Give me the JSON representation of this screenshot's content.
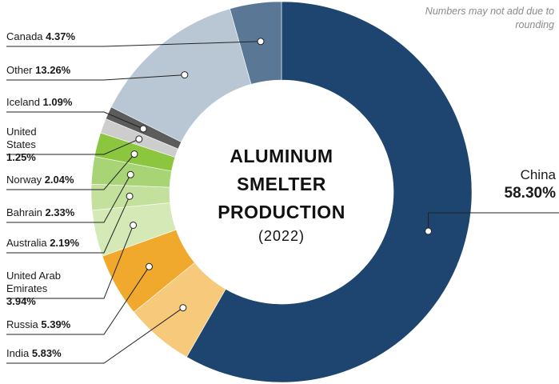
{
  "chart_data": {
    "type": "pie",
    "title": "ALUMINUM SMELTER PRODUCTION",
    "subtitle": "(2022)",
    "note": "Numbers may not add due to rounding",
    "categories": [
      "China",
      "India",
      "Russia",
      "United Arab Emirates",
      "Australia",
      "Bahrain",
      "Norway",
      "United States",
      "Iceland",
      "Other",
      "Canada"
    ],
    "values": [
      58.3,
      5.83,
      5.39,
      3.94,
      2.19,
      2.33,
      2.04,
      1.25,
      1.09,
      13.26,
      4.37
    ],
    "value_labels": [
      "58.30%",
      "5.83%",
      "5.39%",
      "3.94%",
      "2.19%",
      "2.33%",
      "2.04%",
      "1.25%",
      "1.09%",
      "13.26%",
      "4.37%"
    ],
    "colors": [
      "#1e4570",
      "#f6c97b",
      "#f0a92c",
      "#d5e9b7",
      "#c3e09c",
      "#a9d476",
      "#8cc63f",
      "#cdcdcd",
      "#5c5c5c",
      "#b9c7d5",
      "#5a7896"
    ]
  }
}
